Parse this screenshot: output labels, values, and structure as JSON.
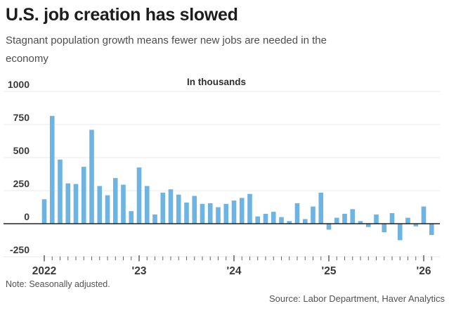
{
  "header": {
    "title": "U.S. job creation has slowed",
    "subtitle_line1": "Stagnant population growth means fewer new jobs are needed in the",
    "subtitle_line2": "economy"
  },
  "chart_data": {
    "type": "bar",
    "title": "U.S. job creation has slowed",
    "units_label": "In thousands",
    "bar_color": "#6db4e2",
    "grid": true,
    "ylim": [
      -250,
      1000
    ],
    "y_ticks": [
      {
        "label": "1000",
        "value": 1000
      },
      {
        "label": "750",
        "value": 750
      },
      {
        "label": "500",
        "value": 500
      },
      {
        "label": "250",
        "value": 250
      },
      {
        "label": "0",
        "value": 0
      },
      {
        "label": "-250",
        "value": -250
      }
    ],
    "x_tick_labels": [
      {
        "label": "2022",
        "month_index": 0
      },
      {
        "label": "'23",
        "month_index": 12
      },
      {
        "label": "'24",
        "month_index": 24
      },
      {
        "label": "'25",
        "month_index": 36
      },
      {
        "label": "'26",
        "month_index": 48
      }
    ],
    "x": [
      "Jan 2022",
      "Feb 2022",
      "Mar 2022",
      "Apr 2022",
      "May 2022",
      "Jun 2022",
      "Jul 2022",
      "Aug 2022",
      "Sep 2022",
      "Oct 2022",
      "Nov 2022",
      "Dec 2022",
      "Jan 2023",
      "Feb 2023",
      "Mar 2023",
      "Apr 2023",
      "May 2023",
      "Jun 2023",
      "Jul 2023",
      "Aug 2023",
      "Sep 2023",
      "Oct 2023",
      "Nov 2023",
      "Dec 2023",
      "Jan 2024",
      "Feb 2024",
      "Mar 2024",
      "Apr 2024",
      "May 2024",
      "Jun 2024",
      "Jul 2024",
      "Aug 2024",
      "Sep 2024",
      "Oct 2024",
      "Nov 2024",
      "Dec 2024",
      "Jan 2025",
      "Feb 2025",
      "Mar 2025",
      "Apr 2025",
      "May 2025",
      "Jun 2025",
      "Jul 2025",
      "Aug 2025",
      "Sep 2025",
      "Oct 2025",
      "Nov 2025",
      "Dec 2025",
      "Jan 2026",
      "Feb 2026"
    ],
    "values": [
      185,
      815,
      485,
      305,
      300,
      430,
      710,
      285,
      215,
      345,
      295,
      95,
      425,
      285,
      70,
      235,
      260,
      220,
      160,
      210,
      150,
      155,
      125,
      150,
      175,
      195,
      225,
      55,
      75,
      90,
      50,
      20,
      155,
      35,
      130,
      235,
      -45,
      45,
      75,
      110,
      20,
      -25,
      70,
      -65,
      80,
      -125,
      45,
      -20,
      130,
      -85
    ]
  },
  "footer": {
    "note": "Note: Seasonally adjusted.",
    "source": "Source: Labor Department, Haver Analytics"
  },
  "colors": {
    "bar": "#6db4e2",
    "gridline": "#e9e9e9",
    "baseline": "#222222",
    "axis_text": "#3a3a3a",
    "tick": "#666666"
  }
}
